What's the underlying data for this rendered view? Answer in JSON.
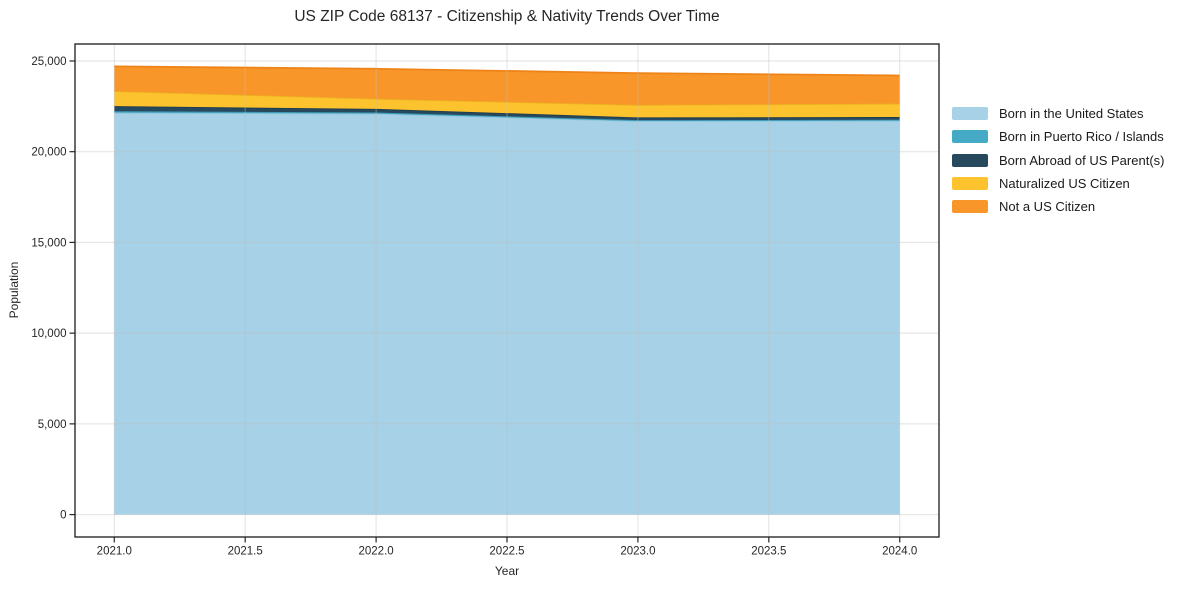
{
  "chart_data": {
    "type": "area",
    "stacked": true,
    "title": "US ZIP Code 68137 - Citizenship & Nativity Trends Over Time",
    "xlabel": "Year",
    "ylabel": "Population",
    "x": [
      2021,
      2022,
      2023,
      2024
    ],
    "series": [
      {
        "name": "Born in the United States",
        "color": "#a7d1e6",
        "edge": "#90c4db",
        "values": [
          22150,
          22100,
          21690,
          21710
        ]
      },
      {
        "name": "Born in Puerto Rico / Islands",
        "color": "#45aac6",
        "edge": "#3d9cb8",
        "values": [
          80,
          60,
          50,
          50
        ]
      },
      {
        "name": "Born Abroad of US Parent(s)",
        "color": "#27495d",
        "edge": "#1f3d4e",
        "values": [
          280,
          200,
          150,
          150
        ]
      },
      {
        "name": "Naturalized US Citizen",
        "color": "#fcc32f",
        "edge": "#edb021",
        "values": [
          830,
          560,
          690,
          740
        ]
      },
      {
        "name": "Not a US Citizen",
        "color": "#f8962a",
        "edge": "#ee8418",
        "values": [
          1360,
          1650,
          1750,
          1550
        ]
      }
    ],
    "xlim": [
      2020.85,
      2024.15
    ],
    "ylim": [
      -1235,
      25935
    ],
    "x_ticks": [
      "2021.0",
      "2021.5",
      "2022.0",
      "2022.5",
      "2023.0",
      "2023.5",
      "2024.0"
    ],
    "x_tick_values": [
      2021,
      2021.5,
      2022,
      2022.5,
      2023,
      2023.5,
      2024
    ],
    "y_ticks": [
      "0",
      "5,000",
      "10,000",
      "15,000",
      "20,000",
      "25,000"
    ],
    "y_tick_values": [
      0,
      5000,
      10000,
      15000,
      20000,
      25000
    ],
    "grid": true,
    "legend_position": "right-outside"
  },
  "colors": {
    "background": "#ffffff",
    "grid": "rgba(190,190,190,0.45)",
    "spine": "#1a1a1a",
    "tick": "#262626",
    "text": "#262626"
  }
}
